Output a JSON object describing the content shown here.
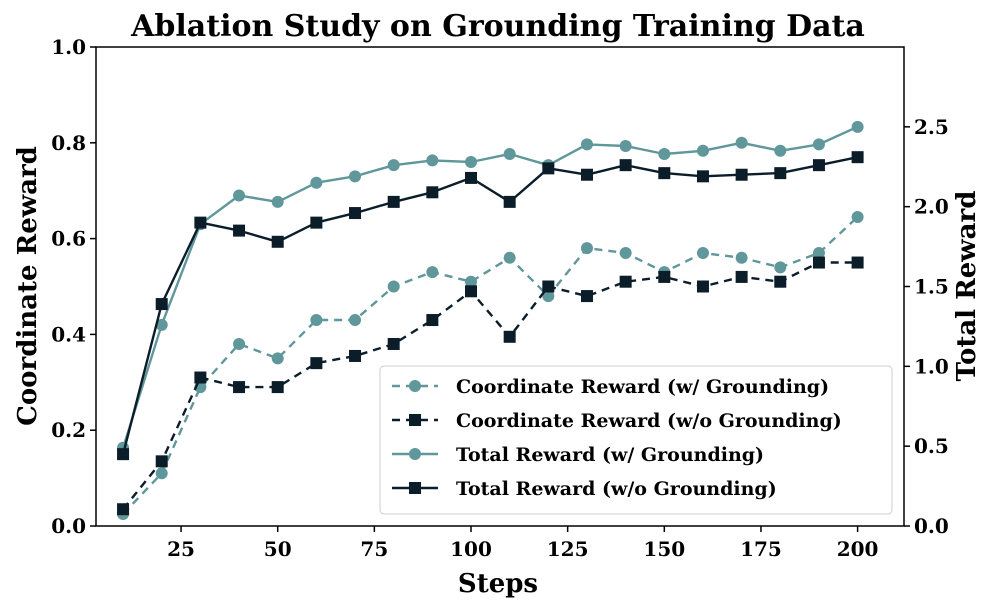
{
  "chart_data": {
    "type": "line",
    "title": "Ablation Study on Grounding Training Data",
    "xlabel": "Steps",
    "ylabel_left": "Coordinate Reward",
    "ylabel_right": "Total Reward",
    "xlim": [
      3,
      212
    ],
    "ylim_left": [
      0,
      1.0
    ],
    "ylim_right": [
      0,
      3.0
    ],
    "x_ticks": [
      25,
      50,
      75,
      100,
      125,
      150,
      175,
      200
    ],
    "x_tick_labels": [
      "25",
      "50",
      "75",
      "100",
      "125",
      "150",
      "175",
      "200"
    ],
    "y_left_ticks": [
      0.0,
      0.2,
      0.4,
      0.6,
      0.8,
      1.0
    ],
    "y_left_tick_labels": [
      "0.0",
      "0.2",
      "0.4",
      "0.6",
      "0.8",
      "1.0"
    ],
    "y_right_ticks": [
      0.0,
      0.5,
      1.0,
      1.5,
      2.0,
      2.5
    ],
    "y_right_tick_labels": [
      "0.0",
      "0.5",
      "1.0",
      "1.5",
      "2.0",
      "2.5"
    ],
    "legend_position": "lower-right",
    "colors": {
      "teal": "#5f979b",
      "dark": "#0c1d2a"
    },
    "x": [
      10,
      20,
      30,
      40,
      50,
      60,
      70,
      80,
      90,
      100,
      110,
      120,
      130,
      140,
      150,
      160,
      170,
      180,
      190,
      200
    ],
    "series": [
      {
        "name": "Coordinate Reward (w/ Grounding)",
        "axis": "left",
        "color": "teal",
        "dash": true,
        "marker": "circle",
        "values": [
          0.025,
          0.11,
          0.29,
          0.38,
          0.35,
          0.43,
          0.43,
          0.5,
          0.53,
          0.51,
          0.56,
          0.48,
          0.58,
          0.57,
          0.53,
          0.57,
          0.56,
          0.54,
          0.57,
          0.645
        ]
      },
      {
        "name": "Coordinate Reward (w/o Grounding)",
        "axis": "left",
        "color": "dark",
        "dash": true,
        "marker": "square",
        "values": [
          0.035,
          0.135,
          0.31,
          0.29,
          0.29,
          0.34,
          0.355,
          0.38,
          0.43,
          0.49,
          0.395,
          0.5,
          0.48,
          0.51,
          0.52,
          0.5,
          0.52,
          0.51,
          0.55,
          0.55
        ]
      },
      {
        "name": "Total Reward (w/ Grounding)",
        "axis": "right",
        "color": "teal",
        "dash": false,
        "marker": "circle",
        "values": [
          0.49,
          1.26,
          1.89,
          2.07,
          2.03,
          2.15,
          2.19,
          2.26,
          2.29,
          2.28,
          2.33,
          2.26,
          2.39,
          2.38,
          2.33,
          2.35,
          2.4,
          2.35,
          2.39,
          2.5
        ]
      },
      {
        "name": "Total Reward (w/o Grounding)",
        "axis": "right",
        "color": "dark",
        "dash": false,
        "marker": "square",
        "values": [
          0.45,
          1.39,
          1.9,
          1.85,
          1.78,
          1.9,
          1.96,
          2.03,
          2.09,
          2.18,
          2.03,
          2.24,
          2.2,
          2.26,
          2.21,
          2.19,
          2.2,
          2.21,
          2.26,
          2.31
        ]
      }
    ]
  }
}
